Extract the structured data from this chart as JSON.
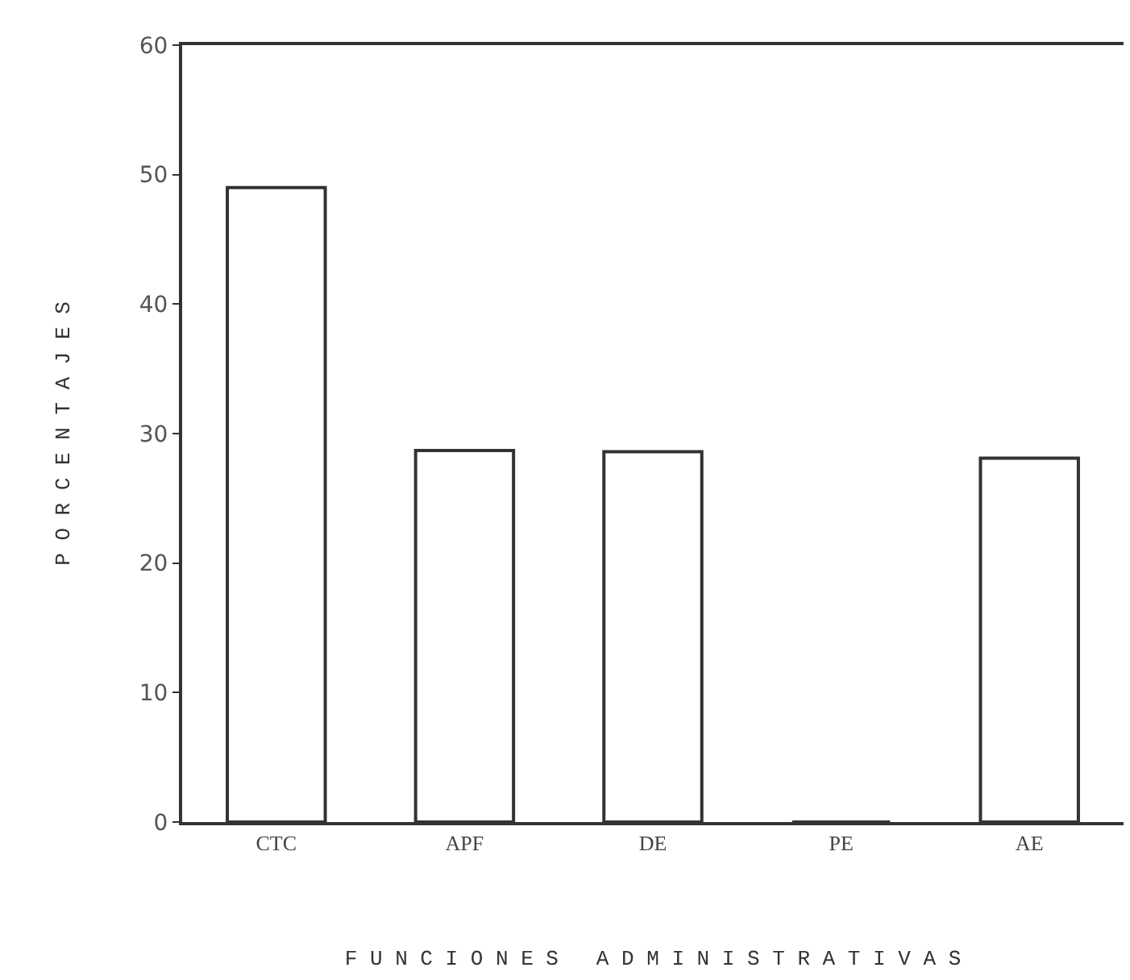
{
  "chart_data": {
    "type": "bar",
    "xlabel": "F U N C I O N E S   A D M I N I S T R A T I V A S",
    "ylabel": "P O R C E N T A J E S",
    "categories": [
      "CTC",
      "APF",
      "DE",
      "PE",
      "AE"
    ],
    "values": [
      49,
      28.7,
      28.6,
      0,
      28.1
    ],
    "color": "#ffffff",
    "ylim": [
      0,
      60
    ],
    "yticks": [
      0,
      10,
      20,
      30,
      40,
      50,
      60
    ]
  }
}
